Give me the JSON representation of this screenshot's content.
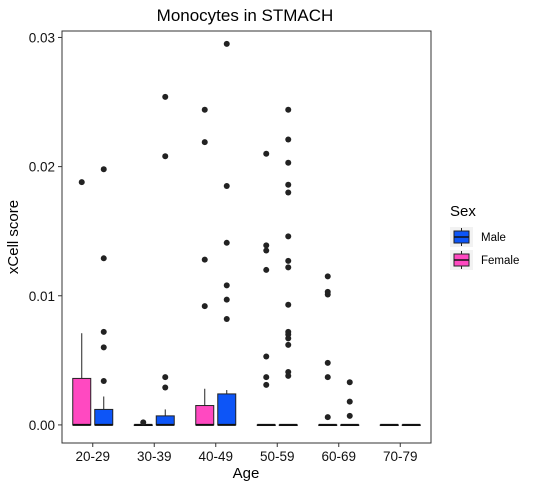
{
  "chart_data": {
    "type": "box",
    "title": "Monocytes in STMACH",
    "xlabel": "Age",
    "ylabel": "xCell score",
    "ylim": [
      -0.0014,
      0.0305
    ],
    "yticks": [
      0.0,
      0.01,
      0.02,
      0.03
    ],
    "ytick_labels": [
      "0.00",
      "0.01",
      "0.02",
      "0.03"
    ],
    "categories": [
      "20-29",
      "30-39",
      "40-49",
      "50-59",
      "60-69",
      "70-79"
    ],
    "grid": false,
    "legend": {
      "title": "Sex",
      "placement": "right"
    },
    "series": [
      {
        "name": "Male",
        "color": "#0D55F7",
        "boxes": [
          {
            "category": "20-29",
            "q1": 0.0,
            "median": 0.0,
            "q3": 0.0012,
            "whisker_low": 0.0,
            "whisker_high": 0.0022,
            "outliers": [
              0.0034,
              0.006,
              0.0072,
              0.0129,
              0.0198
            ]
          },
          {
            "category": "30-39",
            "q1": 0.0,
            "median": 0.0,
            "q3": 0.0007,
            "whisker_low": 0.0,
            "whisker_high": 0.0012,
            "outliers": [
              0.0029,
              0.0037,
              0.0208,
              0.0254
            ]
          },
          {
            "category": "40-49",
            "q1": 0.0,
            "median": 0.0,
            "q3": 0.0024,
            "whisker_low": 0.0,
            "whisker_high": 0.0027,
            "outliers": [
              0.0082,
              0.0097,
              0.0108,
              0.0141,
              0.0185,
              0.0295
            ]
          },
          {
            "category": "50-59",
            "q1": 0.0,
            "median": 0.0,
            "q3": 0.0,
            "whisker_low": 0.0,
            "whisker_high": 0.0,
            "outliers": [
              0.0038,
              0.0041,
              0.0062,
              0.0067,
              0.007,
              0.0072,
              0.0093,
              0.0122,
              0.0127,
              0.0146,
              0.018,
              0.0186,
              0.0203,
              0.0221,
              0.0244
            ]
          },
          {
            "category": "60-69",
            "q1": 0.0,
            "median": 0.0,
            "q3": 0.0,
            "whisker_low": 0.0,
            "whisker_high": 0.0,
            "outliers": [
              0.0007,
              0.0018,
              0.0033
            ]
          },
          {
            "category": "70-79",
            "q1": 0.0,
            "median": 0.0,
            "q3": 0.0,
            "whisker_low": 0.0,
            "whisker_high": 0.0,
            "outliers": []
          }
        ]
      },
      {
        "name": "Female",
        "color": "#FF49C1",
        "boxes": [
          {
            "category": "20-29",
            "q1": 0.0,
            "median": 0.0,
            "q3": 0.0036,
            "whisker_low": 0.0,
            "whisker_high": 0.0071,
            "outliers": [
              0.0188
            ]
          },
          {
            "category": "30-39",
            "q1": 0.0,
            "median": 0.0,
            "q3": 0.0,
            "whisker_low": 0.0,
            "whisker_high": 0.0,
            "outliers": [
              0.0002
            ]
          },
          {
            "category": "40-49",
            "q1": 0.0,
            "median": 0.0,
            "q3": 0.0015,
            "whisker_low": 0.0,
            "whisker_high": 0.0028,
            "outliers": [
              0.0092,
              0.0128,
              0.0219,
              0.0244
            ]
          },
          {
            "category": "50-59",
            "q1": 0.0,
            "median": 0.0,
            "q3": 0.0,
            "whisker_low": 0.0,
            "whisker_high": 0.0,
            "outliers": [
              0.0031,
              0.0037,
              0.0053,
              0.012,
              0.0135,
              0.0139,
              0.021
            ]
          },
          {
            "category": "60-69",
            "q1": 0.0,
            "median": 0.0,
            "q3": 0.0,
            "whisker_low": 0.0,
            "whisker_high": 0.0,
            "outliers": [
              0.0006,
              0.0037,
              0.0048,
              0.0101,
              0.0103,
              0.0115
            ]
          },
          {
            "category": "70-79",
            "q1": 0.0,
            "median": 0.0,
            "q3": 0.0,
            "whisker_low": 0.0,
            "whisker_high": 0.0,
            "outliers": []
          }
        ]
      }
    ]
  }
}
